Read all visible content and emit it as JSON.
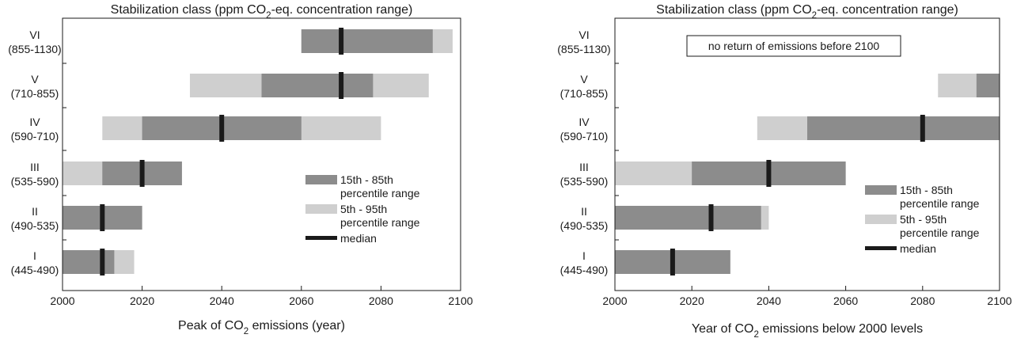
{
  "colors": {
    "inner": "#8c8c8c",
    "outer": "#cfcfcf",
    "median": "#1a1a1a",
    "axis": "#1a1a1a"
  },
  "chart_data": [
    {
      "type": "bar",
      "orientation": "horizontal",
      "title": "Stabilization class (ppm CO2-eq. concentration range)",
      "xlabel": "Peak of CO2 emissions (year)",
      "xlim": [
        2000,
        2100
      ],
      "xticks": [
        "2000",
        "2020",
        "2040",
        "2060",
        "2080",
        "2100"
      ],
      "legend_position": "center-right",
      "legend": [
        {
          "kind": "inner",
          "label_lines": [
            "15th - 85th",
            "percentile range"
          ]
        },
        {
          "kind": "outer",
          "label_lines": [
            "5th - 95th",
            "percentile range"
          ]
        },
        {
          "kind": "median",
          "label_lines": [
            "median"
          ]
        }
      ],
      "categories": [
        {
          "name": "VI",
          "range": "(855-1130)",
          "p5": 2060,
          "p15": 2060,
          "median": 2070,
          "p85": 2093,
          "p95": 2098
        },
        {
          "name": "V",
          "range": "(710-855)",
          "p5": 2032,
          "p15": 2050,
          "median": 2070,
          "p85": 2078,
          "p95": 2092
        },
        {
          "name": "IV",
          "range": "(590-710)",
          "p5": 2010,
          "p15": 2020,
          "median": 2040,
          "p85": 2060,
          "p95": 2080
        },
        {
          "name": "III",
          "range": "(535-590)",
          "p5": 2000,
          "p15": 2010,
          "median": 2020,
          "p85": 2030,
          "p95": 2030
        },
        {
          "name": "II",
          "range": "(490-535)",
          "p5": 2000,
          "p15": 2000,
          "median": 2010,
          "p85": 2020,
          "p95": 2020
        },
        {
          "name": "I",
          "range": "(445-490)",
          "p5": 2000,
          "p15": 2000,
          "median": 2010,
          "p85": 2013,
          "p95": 2018
        }
      ]
    },
    {
      "type": "bar",
      "orientation": "horizontal",
      "title": "Stabilization class (ppm CO2-eq. concentration range)",
      "xlabel": "Year of CO2 emissions below 2000 levels",
      "xlim": [
        2000,
        2100
      ],
      "xticks": [
        "2000",
        "2020",
        "2040",
        "2060",
        "2080",
        "2100"
      ],
      "annotation": "no return of emissions before 2100",
      "legend_position": "lower-right",
      "legend": [
        {
          "kind": "inner",
          "label_lines": [
            "15th - 85th",
            "percentile range"
          ]
        },
        {
          "kind": "outer",
          "label_lines": [
            "5th - 95th",
            "percentile range"
          ]
        },
        {
          "kind": "median",
          "label_lines": [
            "median"
          ]
        }
      ],
      "categories": [
        {
          "name": "VI",
          "range": "(855-1130)",
          "p5": null,
          "p15": null,
          "median": null,
          "p85": null,
          "p95": null
        },
        {
          "name": "V",
          "range": "(710-855)",
          "p5": 2084,
          "p15": 2094,
          "median": null,
          "p85": 2100,
          "p95": 2100
        },
        {
          "name": "IV",
          "range": "(590-710)",
          "p5": 2037,
          "p15": 2050,
          "median": 2080,
          "p85": 2100,
          "p95": 2100
        },
        {
          "name": "III",
          "range": "(535-590)",
          "p5": 2000,
          "p15": 2020,
          "median": 2040,
          "p85": 2060,
          "p95": 2060
        },
        {
          "name": "II",
          "range": "(490-535)",
          "p5": 2000,
          "p15": 2000,
          "median": 2025,
          "p85": 2038,
          "p95": 2040
        },
        {
          "name": "I",
          "range": "(445-490)",
          "p5": 2000,
          "p15": 2000,
          "median": 2015,
          "p85": 2030,
          "p95": 2030
        }
      ]
    }
  ]
}
